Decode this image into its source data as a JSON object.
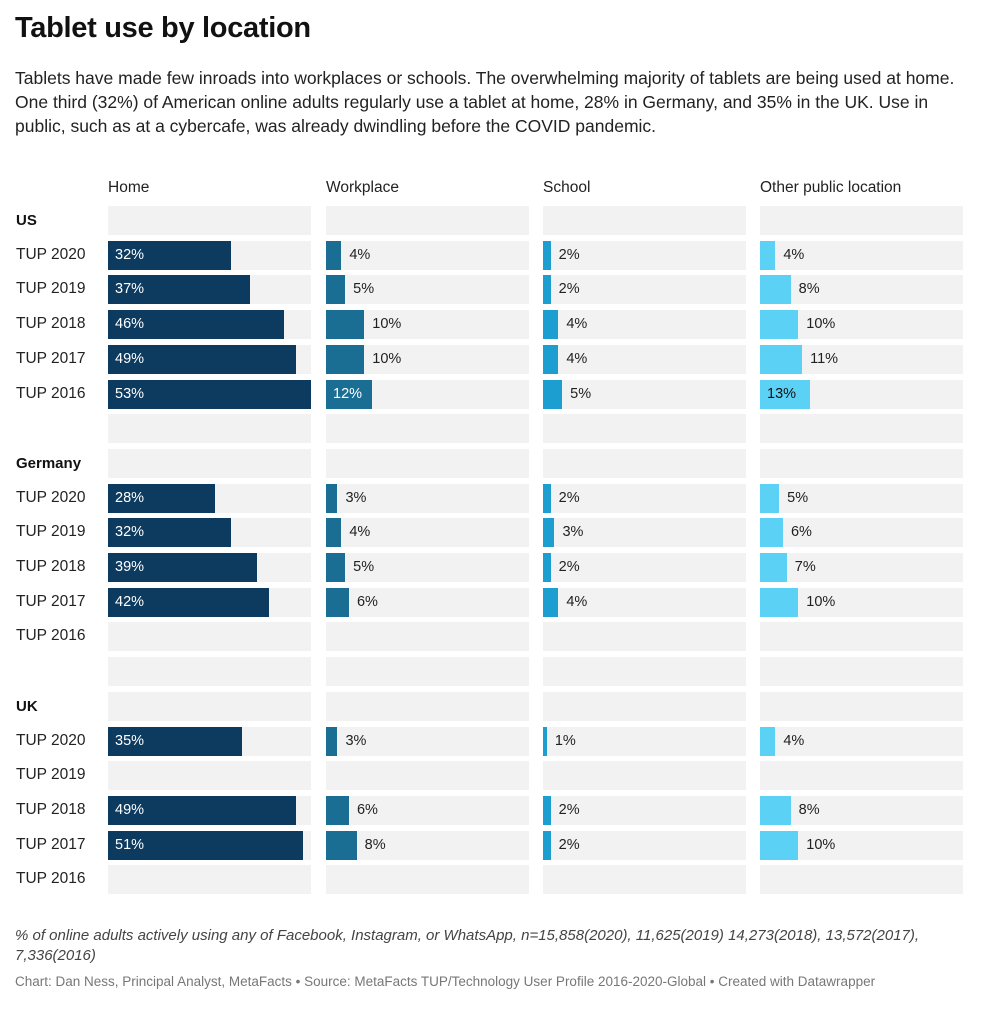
{
  "title": "Tablet use by location",
  "subtitle": "Tablets have made few inroads into workplaces or schools. The overwhelming majority of tablets are being used at home. One third (32%) of American online adults regularly use a tablet at home, 28% in Germany, and 35% in the UK. Use in public, such as at a cybercafe, was already dwindling before the COVID pandemic.",
  "note": "% of online adults actively using any of Facebook, Instagram, or WhatsApp, n=15,858(2020), 11,625(2019) 14,273(2018), 13,572(2017), 7,336(2016)",
  "credit": "Chart: Dan Ness, Principal Analyst, MetaFacts • Source: MetaFacts TUP/Technology User Profile 2016-2020-Global • Created with Datawrapper",
  "chart_data": {
    "type": "bar",
    "orientation": "horizontal",
    "columns": [
      "Home",
      "Workplace",
      "School",
      "Other public location"
    ],
    "column_colors": [
      "#0d3a5f",
      "#1a6e94",
      "#1c9ed1",
      "#5bd1f5"
    ],
    "xlim": [
      0,
      53
    ],
    "groups": [
      {
        "name": "US",
        "rows": [
          {
            "label": "TUP 2020",
            "values": [
              32,
              4,
              2,
              4
            ]
          },
          {
            "label": "TUP 2019",
            "values": [
              37,
              5,
              2,
              8
            ]
          },
          {
            "label": "TUP 2018",
            "values": [
              46,
              10,
              4,
              10
            ]
          },
          {
            "label": "TUP 2017",
            "values": [
              49,
              10,
              4,
              11
            ]
          },
          {
            "label": "TUP 2016",
            "values": [
              53,
              12,
              5,
              13
            ]
          }
        ]
      },
      {
        "name": "Germany",
        "rows": [
          {
            "label": "TUP 2020",
            "values": [
              28,
              3,
              2,
              5
            ]
          },
          {
            "label": "TUP 2019",
            "values": [
              32,
              4,
              3,
              6
            ]
          },
          {
            "label": "TUP 2018",
            "values": [
              39,
              5,
              2,
              7
            ]
          },
          {
            "label": "TUP 2017",
            "values": [
              42,
              6,
              4,
              10
            ]
          },
          {
            "label": "TUP 2016",
            "values": [
              null,
              null,
              null,
              null
            ]
          }
        ]
      },
      {
        "name": "UK",
        "rows": [
          {
            "label": "TUP 2020",
            "values": [
              35,
              3,
              1,
              4
            ]
          },
          {
            "label": "TUP 2019",
            "values": [
              null,
              null,
              null,
              null
            ]
          },
          {
            "label": "TUP 2018",
            "values": [
              49,
              6,
              2,
              8
            ]
          },
          {
            "label": "TUP 2017",
            "values": [
              51,
              8,
              2,
              10
            ]
          },
          {
            "label": "TUP 2016",
            "values": [
              null,
              null,
              null,
              null
            ]
          }
        ]
      }
    ]
  }
}
